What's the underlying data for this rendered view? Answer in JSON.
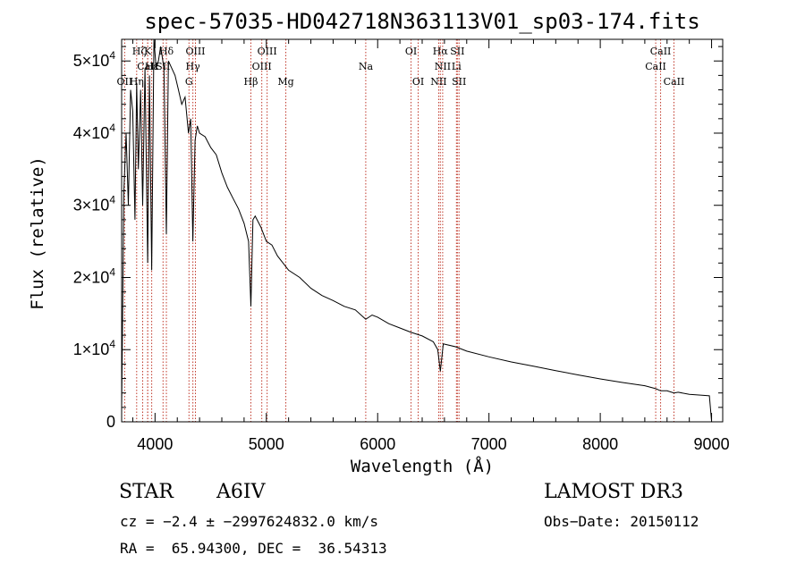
{
  "chart_data": {
    "type": "line",
    "title": "spec-57035-HD042718N363113V01_sp03-174.fits",
    "xlabel": "Wavelength (Å)",
    "ylabel": "Flux (relative)",
    "xlim": [
      3700,
      9100
    ],
    "ylim": [
      0,
      53000
    ],
    "xticks": [
      4000,
      5000,
      6000,
      7000,
      8000,
      9000
    ],
    "xtick_labels": [
      "4000",
      "5000",
      "6000",
      "7000",
      "8000",
      "9000"
    ],
    "yticks": [
      0,
      10000,
      20000,
      30000,
      40000,
      50000
    ],
    "ytick_labels": [
      {
        "base": "0",
        "exp": ""
      },
      {
        "base": "1×10",
        "exp": "4"
      },
      {
        "base": "2×10",
        "exp": "4"
      },
      {
        "base": "3×10",
        "exp": "4"
      },
      {
        "base": "4×10",
        "exp": "4"
      },
      {
        "base": "5×10",
        "exp": "4"
      }
    ],
    "series": [
      {
        "name": "spectrum",
        "x": [
          3700,
          3720,
          3740,
          3760,
          3780,
          3800,
          3820,
          3835,
          3850,
          3870,
          3889,
          3910,
          3934,
          3950,
          3970,
          3990,
          4010,
          4030,
          4050,
          4080,
          4102,
          4120,
          4150,
          4180,
          4210,
          4240,
          4270,
          4300,
          4320,
          4340,
          4360,
          4380,
          4400,
          4450,
          4500,
          4550,
          4600,
          4650,
          4700,
          4750,
          4800,
          4840,
          4861,
          4880,
          4900,
          4950,
          5000,
          5050,
          5100,
          5150,
          5200,
          5300,
          5400,
          5500,
          5600,
          5700,
          5800,
          5893,
          5950,
          6000,
          6100,
          6200,
          6300,
          6400,
          6500,
          6540,
          6563,
          6590,
          6700,
          6800,
          7000,
          7200,
          7400,
          7600,
          7800,
          8000,
          8200,
          8400,
          8498,
          8542,
          8600,
          8662,
          8700,
          8800,
          8900,
          8980,
          9000
        ],
        "y": [
          2000,
          32000,
          40000,
          30000,
          46000,
          43000,
          28000,
          47000,
          35000,
          46000,
          30000,
          49000,
          22000,
          48000,
          21000,
          53000,
          49000,
          50000,
          52000,
          49000,
          26000,
          50000,
          49000,
          48000,
          46000,
          44000,
          45000,
          40000,
          42000,
          25000,
          39000,
          41000,
          40000,
          39500,
          38000,
          37000,
          34500,
          32500,
          31000,
          29500,
          27500,
          25000,
          16000,
          28000,
          28500,
          27000,
          25000,
          24500,
          23000,
          22000,
          21000,
          20000,
          18500,
          17500,
          16800,
          16000,
          15500,
          14200,
          14800,
          14500,
          13600,
          13000,
          12400,
          11900,
          11100,
          10000,
          7000,
          10800,
          10400,
          9800,
          9000,
          8300,
          7700,
          7100,
          6500,
          5950,
          5450,
          5000,
          4600,
          4300,
          4300,
          4000,
          4100,
          3800,
          3700,
          3600,
          0
        ]
      }
    ],
    "lines": [
      {
        "name": "Hζ",
        "x": 3889,
        "pos": "top",
        "row": 1,
        "rel": -4
      },
      {
        "name": "K",
        "x": 3934,
        "pos": "top",
        "row": 1,
        "rel": 0
      },
      {
        "name": "Hδ",
        "x": 4102,
        "pos": "top",
        "row": 1,
        "rel": 0
      },
      {
        "name": "OIII",
        "x": 4363,
        "pos": "top",
        "row": 1,
        "rel": 0
      },
      {
        "name": "OIII",
        "x": 5007,
        "pos": "top",
        "row": 1,
        "rel": 0
      },
      {
        "name": "OI",
        "x": 6300,
        "pos": "top",
        "row": 1,
        "rel": 0
      },
      {
        "name": "Hα",
        "x": 6563,
        "pos": "top",
        "row": 1,
        "rel": 0
      },
      {
        "name": "SII",
        "x": 6716,
        "pos": "top",
        "row": 1,
        "rel": 0
      },
      {
        "name": "CaII",
        "x": 8542,
        "pos": "top",
        "row": 1,
        "rel": 0
      },
      {
        "name": "CaII",
        "x": 3934,
        "pos": "top",
        "row": 2,
        "rel": 0
      },
      {
        "name": "Hε",
        "x": 3970,
        "pos": "top",
        "row": 2,
        "rel": 0
      },
      {
        "name": "SII",
        "x": 4072,
        "pos": "top",
        "row": 2,
        "rel": 0
      },
      {
        "name": "Hγ",
        "x": 4340,
        "pos": "top",
        "row": 2,
        "rel": 0
      },
      {
        "name": "OIII",
        "x": 4959,
        "pos": "top",
        "row": 2,
        "rel": 0
      },
      {
        "name": "NII",
        "x": 6584,
        "pos": "top",
        "row": 2,
        "rel": 0
      },
      {
        "name": "Li",
        "x": 6708,
        "pos": "top",
        "row": 2,
        "rel": 0
      },
      {
        "name": "CaII",
        "x": 8498,
        "pos": "top",
        "row": 2,
        "rel": 0
      },
      {
        "name": "Na",
        "x": 5893,
        "pos": "top",
        "row": 2,
        "rel": 0
      },
      {
        "name": "OII",
        "x": 3727,
        "pos": "top",
        "row": 3,
        "rel": 0
      },
      {
        "name": "Hη",
        "x": 3835,
        "pos": "top",
        "row": 3,
        "rel": 0
      },
      {
        "name": "G",
        "x": 4305,
        "pos": "top",
        "row": 3,
        "rel": 0
      },
      {
        "name": "Hβ",
        "x": 4861,
        "pos": "top",
        "row": 3,
        "rel": 0
      },
      {
        "name": "Mg",
        "x": 5175,
        "pos": "top",
        "row": 3,
        "rel": 0
      },
      {
        "name": "OI",
        "x": 6364,
        "pos": "top",
        "row": 3,
        "rel": 0
      },
      {
        "name": "NII",
        "x": 6548,
        "pos": "top",
        "row": 3,
        "rel": 0
      },
      {
        "name": "SII",
        "x": 6731,
        "pos": "top",
        "row": 3,
        "rel": 0
      },
      {
        "name": "CaII",
        "x": 8662,
        "pos": "top",
        "row": 3,
        "rel": 0
      }
    ]
  },
  "footer": {
    "class_label": "STAR",
    "subclass": "A6IV",
    "survey": "LAMOST DR3",
    "cz_line": "cz = −2.4 ± −2997624832.0 km/s",
    "obs_date": "Obs−Date: 20150112",
    "coords": "RA =  65.94300, DEC =  36.54313"
  },
  "colors": {
    "spectrum": "#000000",
    "line_marker": "#c0392b",
    "axis": "#000000"
  }
}
